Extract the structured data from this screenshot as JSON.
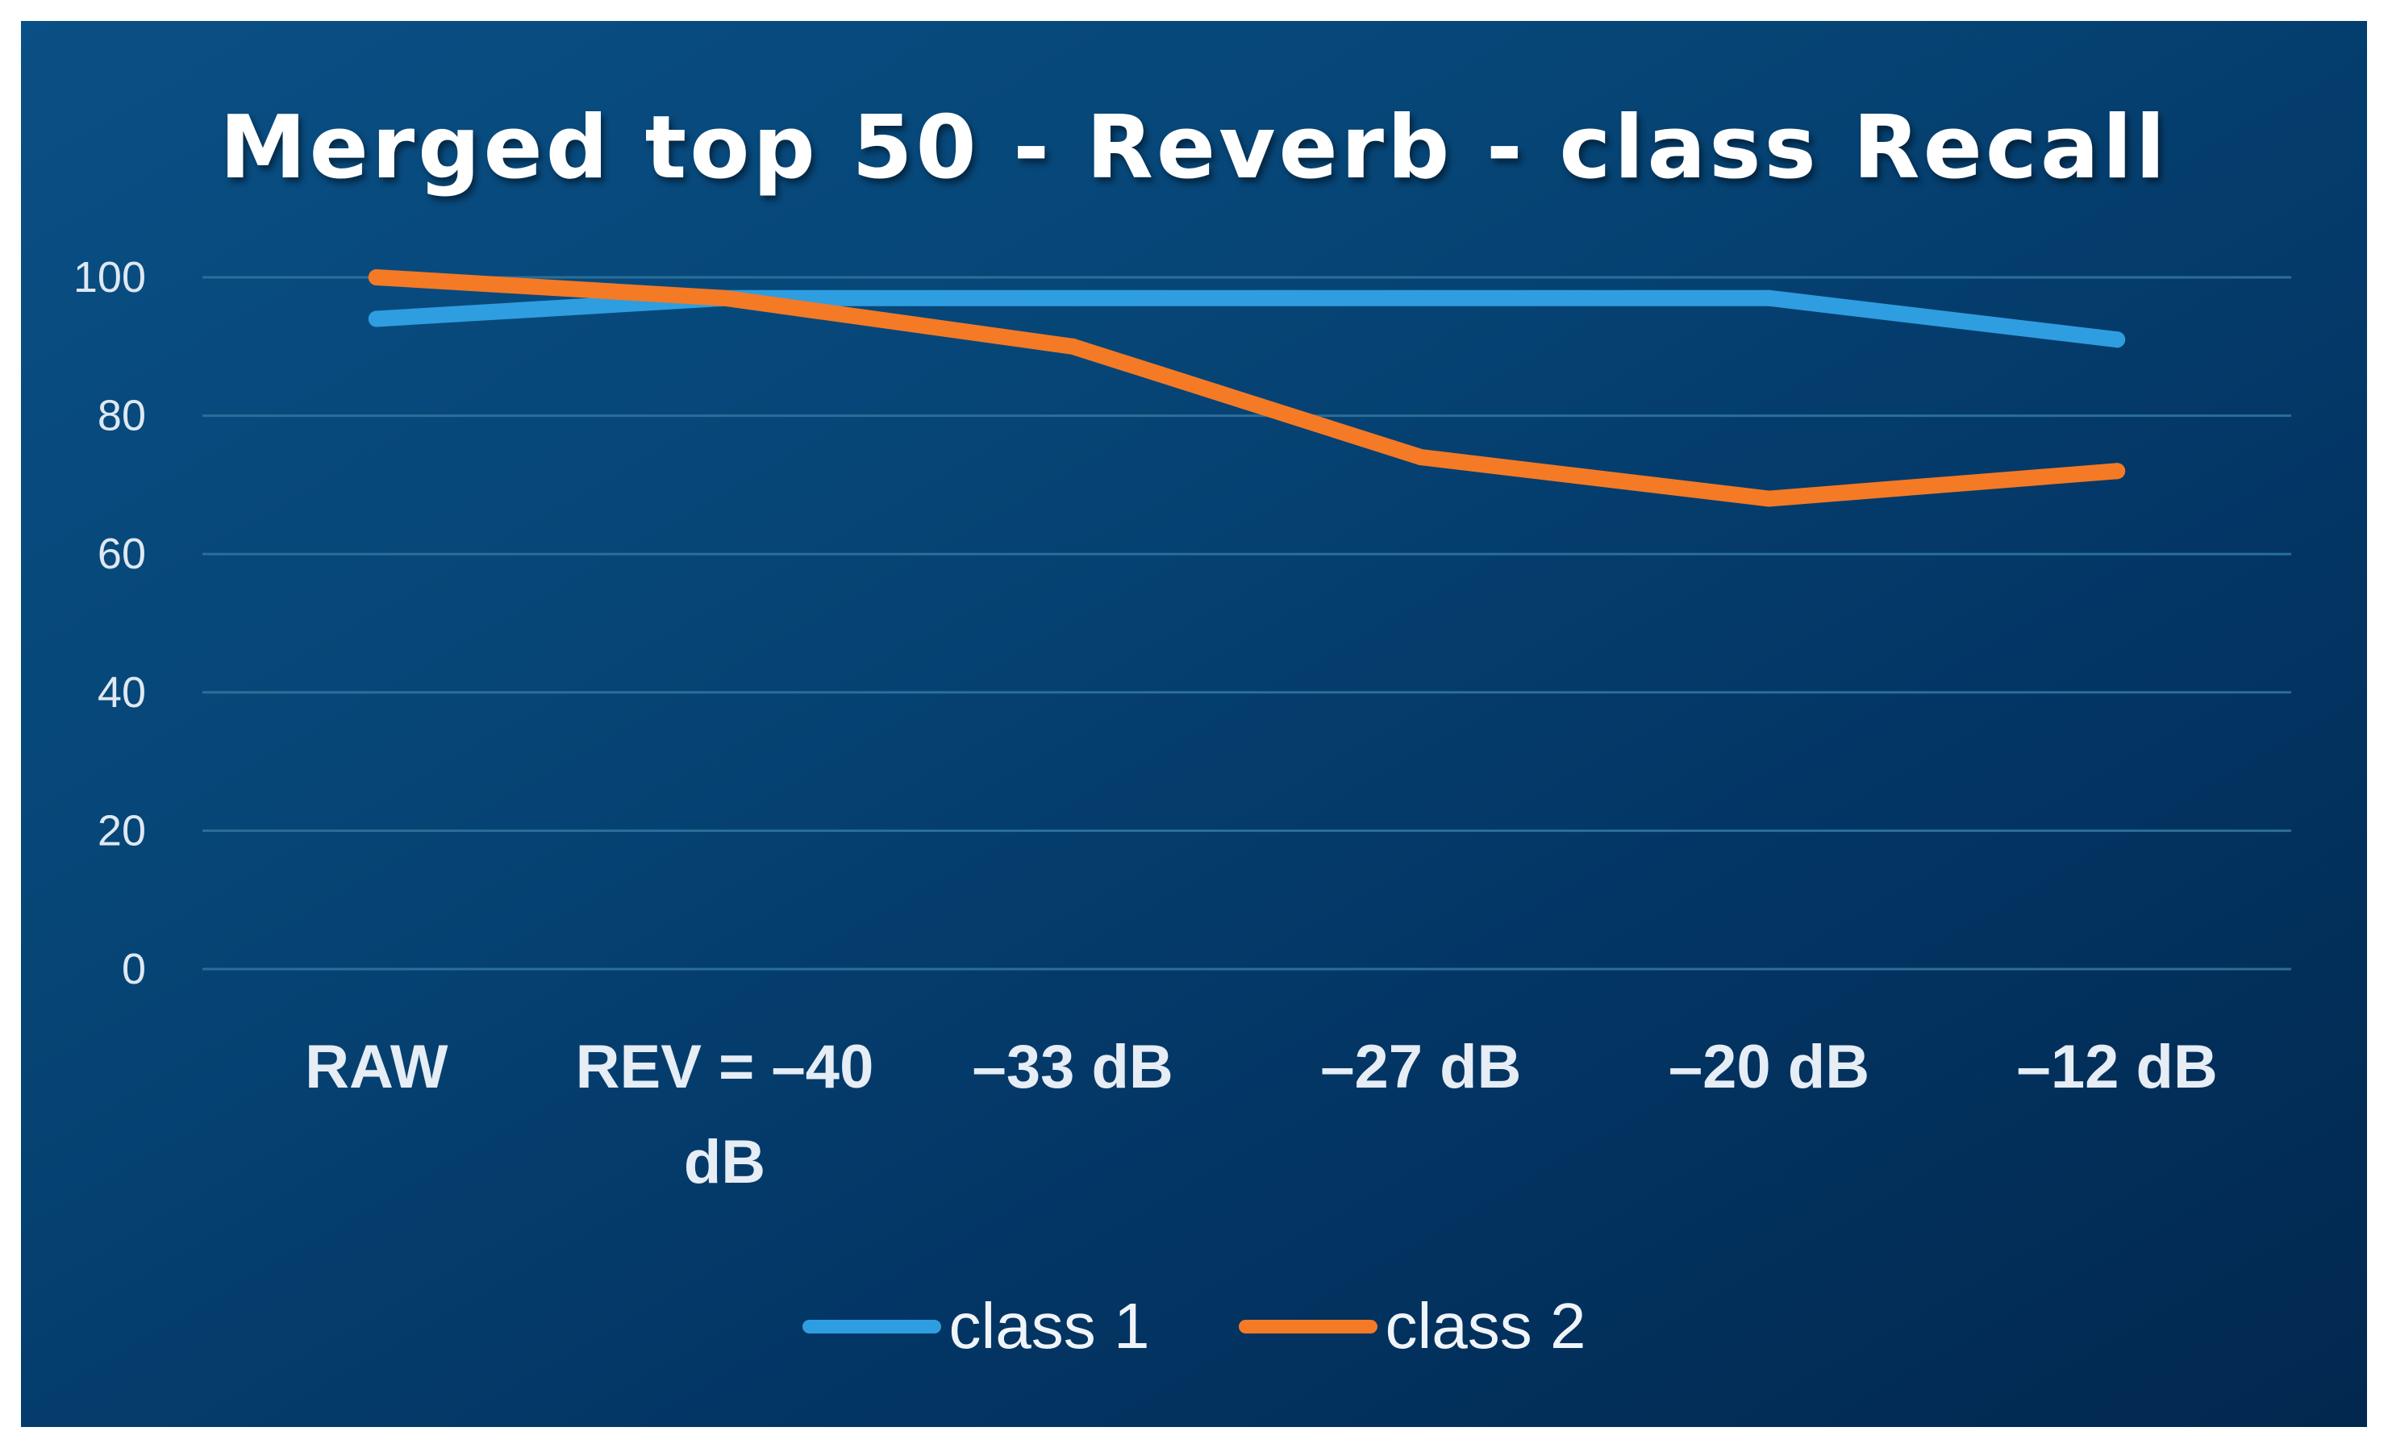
{
  "chart_data": {
    "type": "line",
    "title": "Merged top 50 - Reverb - class Recall",
    "categories": [
      "RAW",
      "REV = –40 dB",
      "–33 dB",
      "–27 dB",
      "–20 dB",
      "–12 dB"
    ],
    "category_lines": [
      [
        "RAW"
      ],
      [
        "REV = –40",
        "dB"
      ],
      [
        "–33 dB"
      ],
      [
        "–27 dB"
      ],
      [
        "–20 dB"
      ],
      [
        "–12 dB"
      ]
    ],
    "series": [
      {
        "name": "class 1",
        "color": "#2e9ee0",
        "values": [
          94,
          97,
          97,
          97,
          97,
          91
        ]
      },
      {
        "name": "class 2",
        "color": "#f47a26",
        "values": [
          100,
          97,
          90,
          74,
          68,
          72
        ]
      }
    ],
    "yticks": [
      0,
      20,
      40,
      60,
      80,
      100
    ],
    "ylim": [
      0,
      100
    ],
    "grid": true,
    "legend": "bottom",
    "xlabel": "",
    "ylabel": ""
  }
}
